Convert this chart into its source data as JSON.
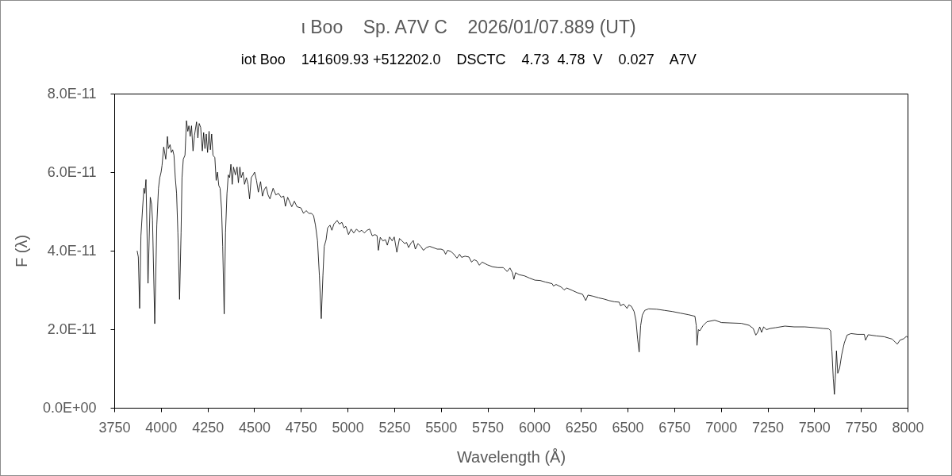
{
  "chart_data": {
    "type": "line",
    "title": "ι Boo    Sp. A7V C    2026/01/07.889 (UT)",
    "subtitle": "iot Boo    141609.93 +512202.0    DSCTC    4.73  4.78  V    0.027    A7V",
    "xlabel": "Wavelength (Å)",
    "ylabel": "F (λ)",
    "xlim": [
      3750,
      8000
    ],
    "xticks": [
      3750,
      4000,
      4250,
      4500,
      4750,
      5000,
      5250,
      5500,
      5750,
      6000,
      6250,
      6500,
      6750,
      7000,
      7250,
      7500,
      7750,
      8000
    ],
    "ylim": [
      0,
      8e-11
    ],
    "yticks": [
      {
        "value": 0,
        "label": "0.0E+00"
      },
      {
        "value": 2e-11,
        "label": "2.0E-11"
      },
      {
        "value": 4e-11,
        "label": "4.0E-11"
      },
      {
        "value": 6e-11,
        "label": "6.0E-11"
      },
      {
        "value": 8e-11,
        "label": "8.0E-11"
      }
    ],
    "color": "#000000",
    "grid": false,
    "x": [
      3873,
      3879,
      3886,
      3893,
      3902,
      3909,
      3914,
      3920,
      3931,
      3943,
      3950,
      3955,
      3967,
      3978,
      3987,
      3994,
      4001,
      4006,
      4015,
      4026,
      4035,
      4040,
      4049,
      4056,
      4063,
      4070,
      4077,
      4084,
      4091,
      4100,
      4108,
      4113,
      4120,
      4129,
      4137,
      4144,
      4150,
      4157,
      4164,
      4172,
      4180,
      4191,
      4198,
      4205,
      4213,
      4222,
      4229,
      4236,
      4243,
      4250,
      4258,
      4265,
      4272,
      4279,
      4289,
      4296,
      4303,
      4310,
      4317,
      4325,
      4331,
      4339,
      4346,
      4354,
      4361,
      4368,
      4375,
      4382,
      4389,
      4399,
      4408,
      4415,
      4423,
      4430,
      4440,
      4448,
      4458,
      4467,
      4475,
      4484,
      4494,
      4502,
      4512,
      4522,
      4534,
      4544,
      4554,
      4564,
      4574,
      4584,
      4601,
      4616,
      4630,
      4644,
      4658,
      4667,
      4679,
      4701,
      4715,
      4729,
      4750,
      4764,
      4778,
      4793,
      4807,
      4818,
      4828,
      4839,
      4849,
      4859,
      4868,
      4875,
      4885,
      4893,
      4906,
      4916,
      4927,
      4944,
      4956,
      4970,
      4981,
      4991,
      5005,
      5019,
      5033,
      5048,
      5062,
      5076,
      5090,
      5104,
      5118,
      5132,
      5147,
      5158,
      5165,
      5175,
      5189,
      5203,
      5213,
      5225,
      5239,
      5250,
      5264,
      5278,
      5292,
      5306,
      5316,
      5327,
      5338,
      5352,
      5363,
      5377,
      5392,
      5406,
      5423,
      5440,
      5458,
      5480,
      5501,
      5515,
      5525,
      5536,
      5553,
      5568,
      5586,
      5600,
      5611,
      5629,
      5650,
      5664,
      5678,
      5692,
      5706,
      5721,
      5749,
      5777,
      5806,
      5834,
      5855,
      5870,
      5883,
      5891,
      5900,
      5918,
      5947,
      5976,
      6004,
      6032,
      6061,
      6096,
      6103,
      6117,
      6146,
      6160,
      6174,
      6203,
      6231,
      6259,
      6276,
      6288,
      6316,
      6344,
      6373,
      6401,
      6429,
      6455,
      6462,
      6479,
      6497,
      6507,
      6521,
      6535,
      6545,
      6554,
      6562,
      6570,
      6579,
      6592,
      6613,
      6656,
      6698,
      6741,
      6783,
      6826,
      6861,
      6868,
      6872,
      6879,
      6887,
      6904,
      6925,
      6967,
      7003,
      7052,
      7109,
      7151,
      7173,
      7187,
      7197,
      7208,
      7218,
      7229,
      7244,
      7265,
      7293,
      7343,
      7392,
      7449,
      7506,
      7548,
      7577,
      7588,
      7595,
      7602,
      7608,
      7615,
      7619,
      7626,
      7636,
      7647,
      7661,
      7676,
      7697,
      7732,
      7768,
      7775,
      7789,
      7832,
      7874,
      7917,
      7945,
      7959,
      7980,
      7994,
      8000
    ],
    "values": [
      3.99e-11,
      3.84e-11,
      2.53e-11,
      4.38e-11,
      5.09e-11,
      5.59e-11,
      5.46e-11,
      5.81e-11,
      3.17e-11,
      5.36e-11,
      5.19e-11,
      4.78e-11,
      2.14e-11,
      4.65e-11,
      5.59e-11,
      5.86e-11,
      6e-11,
      6.17e-11,
      6.64e-11,
      6.33e-11,
      6.91e-11,
      6.6e-11,
      6.7e-11,
      6.5e-11,
      6.57e-11,
      6.43e-11,
      5.86e-11,
      5.46e-11,
      4.45e-11,
      2.76e-11,
      4.45e-11,
      5.86e-11,
      6.33e-11,
      6.43e-11,
      7.31e-11,
      7.04e-11,
      7.18e-11,
      6.91e-11,
      7.18e-11,
      6.54e-11,
      6.94e-11,
      7.28e-11,
      6.87e-11,
      7.24e-11,
      7.14e-11,
      6.54e-11,
      7.01e-11,
      6.6e-11,
      6.97e-11,
      6.5e-11,
      7.04e-11,
      6.57e-11,
      6.97e-11,
      6.43e-11,
      6.37e-11,
      5.79e-11,
      6e-11,
      5.66e-11,
      5.59e-11,
      5.05e-11,
      4.11e-11,
      2.39e-11,
      4.45e-11,
      5.46e-11,
      5.93e-11,
      5.86e-11,
      6.2e-11,
      5.69e-11,
      6.13e-11,
      5.93e-11,
      6.13e-11,
      5.73e-11,
      6.13e-11,
      5.86e-11,
      6e-11,
      5.69e-11,
      5.86e-11,
      5.69e-11,
      5.32e-11,
      5.86e-11,
      5.93e-11,
      6e-11,
      5.79e-11,
      5.49e-11,
      5.76e-11,
      5.39e-11,
      5.56e-11,
      5.63e-11,
      5.42e-11,
      5.32e-11,
      5.59e-11,
      5.42e-11,
      5.46e-11,
      5.36e-11,
      5.39e-11,
      5.13e-11,
      5.36e-11,
      5.12e-11,
      5.26e-11,
      5.12e-11,
      5.09e-11,
      4.95e-11,
      5.02e-11,
      4.95e-11,
      4.95e-11,
      4.89e-11,
      4.65e-11,
      4.25e-11,
      3.37e-11,
      2.27e-11,
      3.37e-11,
      4.11e-11,
      4.28e-11,
      4.58e-11,
      4.65e-11,
      4.52e-11,
      4.68e-11,
      4.77e-11,
      4.68e-11,
      4.72e-11,
      4.58e-11,
      4.62e-11,
      4.41e-11,
      4.55e-11,
      4.45e-11,
      4.55e-11,
      4.48e-11,
      4.52e-11,
      4.45e-11,
      4.52e-11,
      4.55e-11,
      4.38e-11,
      4.41e-11,
      4.38e-11,
      4.01e-11,
      4.34e-11,
      4.25e-11,
      4.28e-11,
      4.14e-11,
      4.35e-11,
      4.25e-11,
      4.35e-11,
      3.96e-11,
      4.31e-11,
      4.25e-11,
      4.18e-11,
      4.21e-11,
      4.08e-11,
      4.18e-11,
      4.26e-11,
      4.04e-11,
      4.18e-11,
      4.11e-11,
      4.01e-11,
      4.08e-11,
      4.11e-11,
      4.08e-11,
      4.04e-11,
      4.04e-11,
      4.01e-11,
      3.91e-11,
      4.01e-11,
      3.98e-11,
      3.92e-11,
      3.81e-11,
      3.91e-11,
      3.83e-11,
      3.86e-11,
      3.84e-11,
      3.71e-11,
      3.77e-11,
      3.74e-11,
      3.63e-11,
      3.71e-11,
      3.64e-11,
      3.59e-11,
      3.57e-11,
      3.57e-11,
      3.47e-11,
      3.56e-11,
      3.44e-11,
      3.27e-11,
      3.44e-11,
      3.39e-11,
      3.36e-11,
      3.3e-11,
      3.25e-11,
      3.24e-11,
      3.2e-11,
      3.16e-11,
      3.1e-11,
      3.14e-11,
      3.07e-11,
      3e-11,
      3.05e-11,
      2.99e-11,
      2.93e-11,
      2.89e-11,
      2.73e-11,
      2.87e-11,
      2.84e-11,
      2.8e-11,
      2.77e-11,
      2.73e-11,
      2.7e-11,
      2.69e-11,
      2.6e-11,
      2.64e-11,
      2.53e-11,
      2.62e-11,
      2.58e-11,
      2.45e-11,
      2.22e-11,
      1.75e-11,
      1.42e-11,
      2.09e-11,
      2.36e-11,
      2.48e-11,
      2.52e-11,
      2.51e-11,
      2.48e-11,
      2.45e-11,
      2.41e-11,
      2.37e-11,
      2.33e-11,
      2.09e-11,
      1.59e-11,
      1.99e-11,
      1.96e-11,
      2.09e-11,
      2.19e-11,
      2.23e-11,
      2.17e-11,
      2.16e-11,
      2.15e-11,
      2.1e-11,
      2.02e-11,
      1.85e-11,
      1.92e-11,
      2.06e-11,
      1.92e-11,
      2.06e-11,
      1.99e-11,
      2.02e-11,
      2.04e-11,
      2.08e-11,
      2.06e-11,
      2.06e-11,
      2.04e-11,
      2.02e-11,
      2.01e-11,
      1.96e-11,
      1.42e-11,
      7.4e-12,
      3.4e-12,
      9.5e-12,
      1.45e-11,
      8.8e-12,
      1.01e-11,
      1.35e-11,
      1.65e-11,
      1.85e-11,
      1.89e-11,
      1.87e-11,
      1.87e-11,
      1.72e-11,
      1.86e-11,
      1.83e-11,
      1.81e-11,
      1.75e-11,
      1.62e-11,
      1.72e-11,
      1.76e-11,
      1.82e-11,
      1.79e-11
    ]
  }
}
